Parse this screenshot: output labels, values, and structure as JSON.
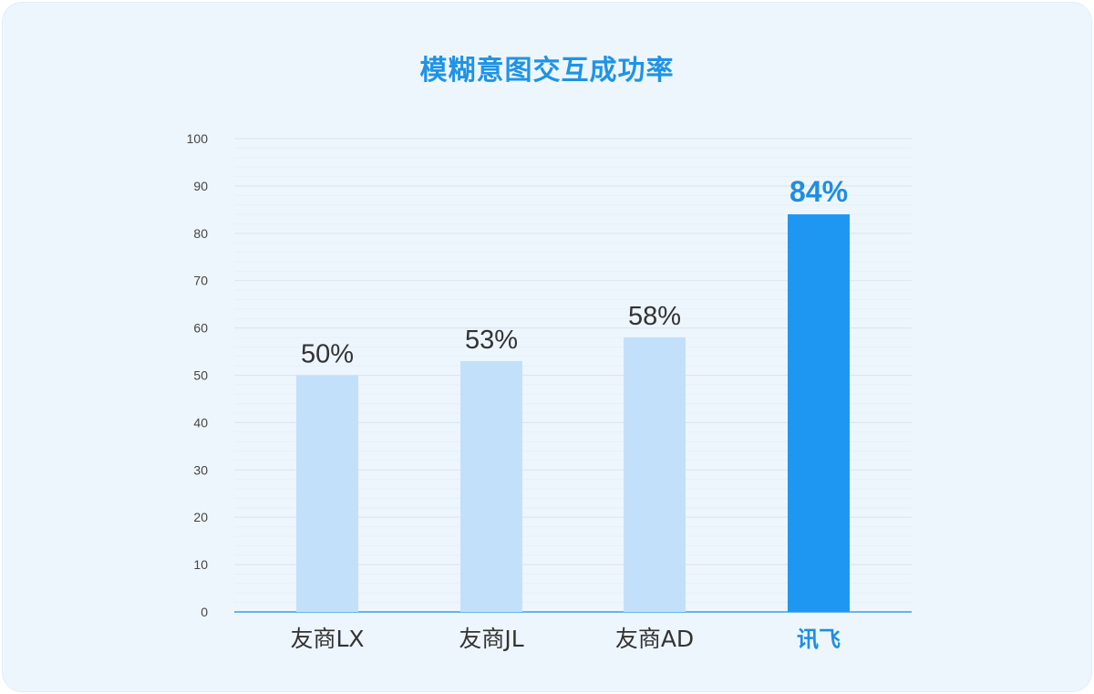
{
  "chart_data": {
    "type": "bar",
    "title": "模糊意图交互成功率",
    "categories": [
      "友商LX",
      "友商JL",
      "友商AD",
      "讯飞"
    ],
    "values": [
      50,
      53,
      58,
      84
    ],
    "data_labels": [
      "50%",
      "53%",
      "58%",
      "84%"
    ],
    "highlight_index": 3,
    "ylim": [
      0,
      100
    ],
    "yticks": [
      0,
      10,
      20,
      30,
      40,
      50,
      60,
      70,
      80,
      90,
      100
    ],
    "xlabel": "",
    "ylabel": "",
    "grid": true,
    "legend": "none",
    "colors": {
      "bar": "#c3e0fa",
      "highlight": "#1e97f3",
      "highlight_text": "#1f8ee0",
      "text": "#333333",
      "axis": "#3aa0e0"
    }
  }
}
